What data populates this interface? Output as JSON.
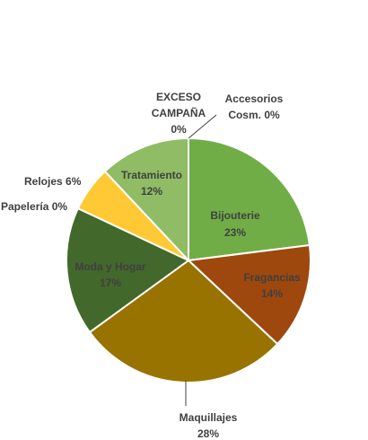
{
  "chart_data": {
    "type": "pie",
    "title": "",
    "slices": [
      {
        "label": "Accesorios Cosm.",
        "value": 0,
        "percent_label": "0%",
        "color": "#6aa13d"
      },
      {
        "label": "Bijouterie",
        "value": 23,
        "percent_label": "23%",
        "color": "#70ad47"
      },
      {
        "label": "Fragancias",
        "value": 14,
        "percent_label": "14%",
        "color": "#9e480e"
      },
      {
        "label": "Maquillajes",
        "value": 28,
        "percent_label": "28%",
        "color": "#997300"
      },
      {
        "label": "Moda y Hogar",
        "value": 17,
        "percent_label": "17%",
        "color": "#43682b"
      },
      {
        "label": "Papelería",
        "value": 0,
        "percent_label": "0%",
        "color": "#ffc000"
      },
      {
        "label": "Relojes",
        "value": 6,
        "percent_label": "6%",
        "color": "#ffc935"
      },
      {
        "label": "Tratamiento",
        "value": 12,
        "percent_label": "12%",
        "color": "#8fbc64"
      },
      {
        "label": "EXCESO CAMPAÑA",
        "value": 0,
        "percent_label": "0%",
        "color": "#a9d18e"
      }
    ],
    "labels": {
      "accesorios_l1": "Accesorios",
      "accesorios_l2": "Cosm. 0%",
      "bijouterie_name": "Bijouterie",
      "bijouterie_pct": "23%",
      "fragancias_name": "Fragancias",
      "fragancias_pct": "14%",
      "maquillajes_name": "Maquillajes",
      "maquillajes_pct": "28%",
      "moda_name": "Moda y Hogar",
      "moda_pct": "17%",
      "papeleria": "Papelería 0%",
      "relojes": "Relojes 6%",
      "tratamiento_name": "Tratamiento",
      "tratamiento_pct": "12%",
      "exceso_l1": "EXCESO",
      "exceso_l2": "CAMPAÑA",
      "exceso_l3": "0%"
    }
  }
}
